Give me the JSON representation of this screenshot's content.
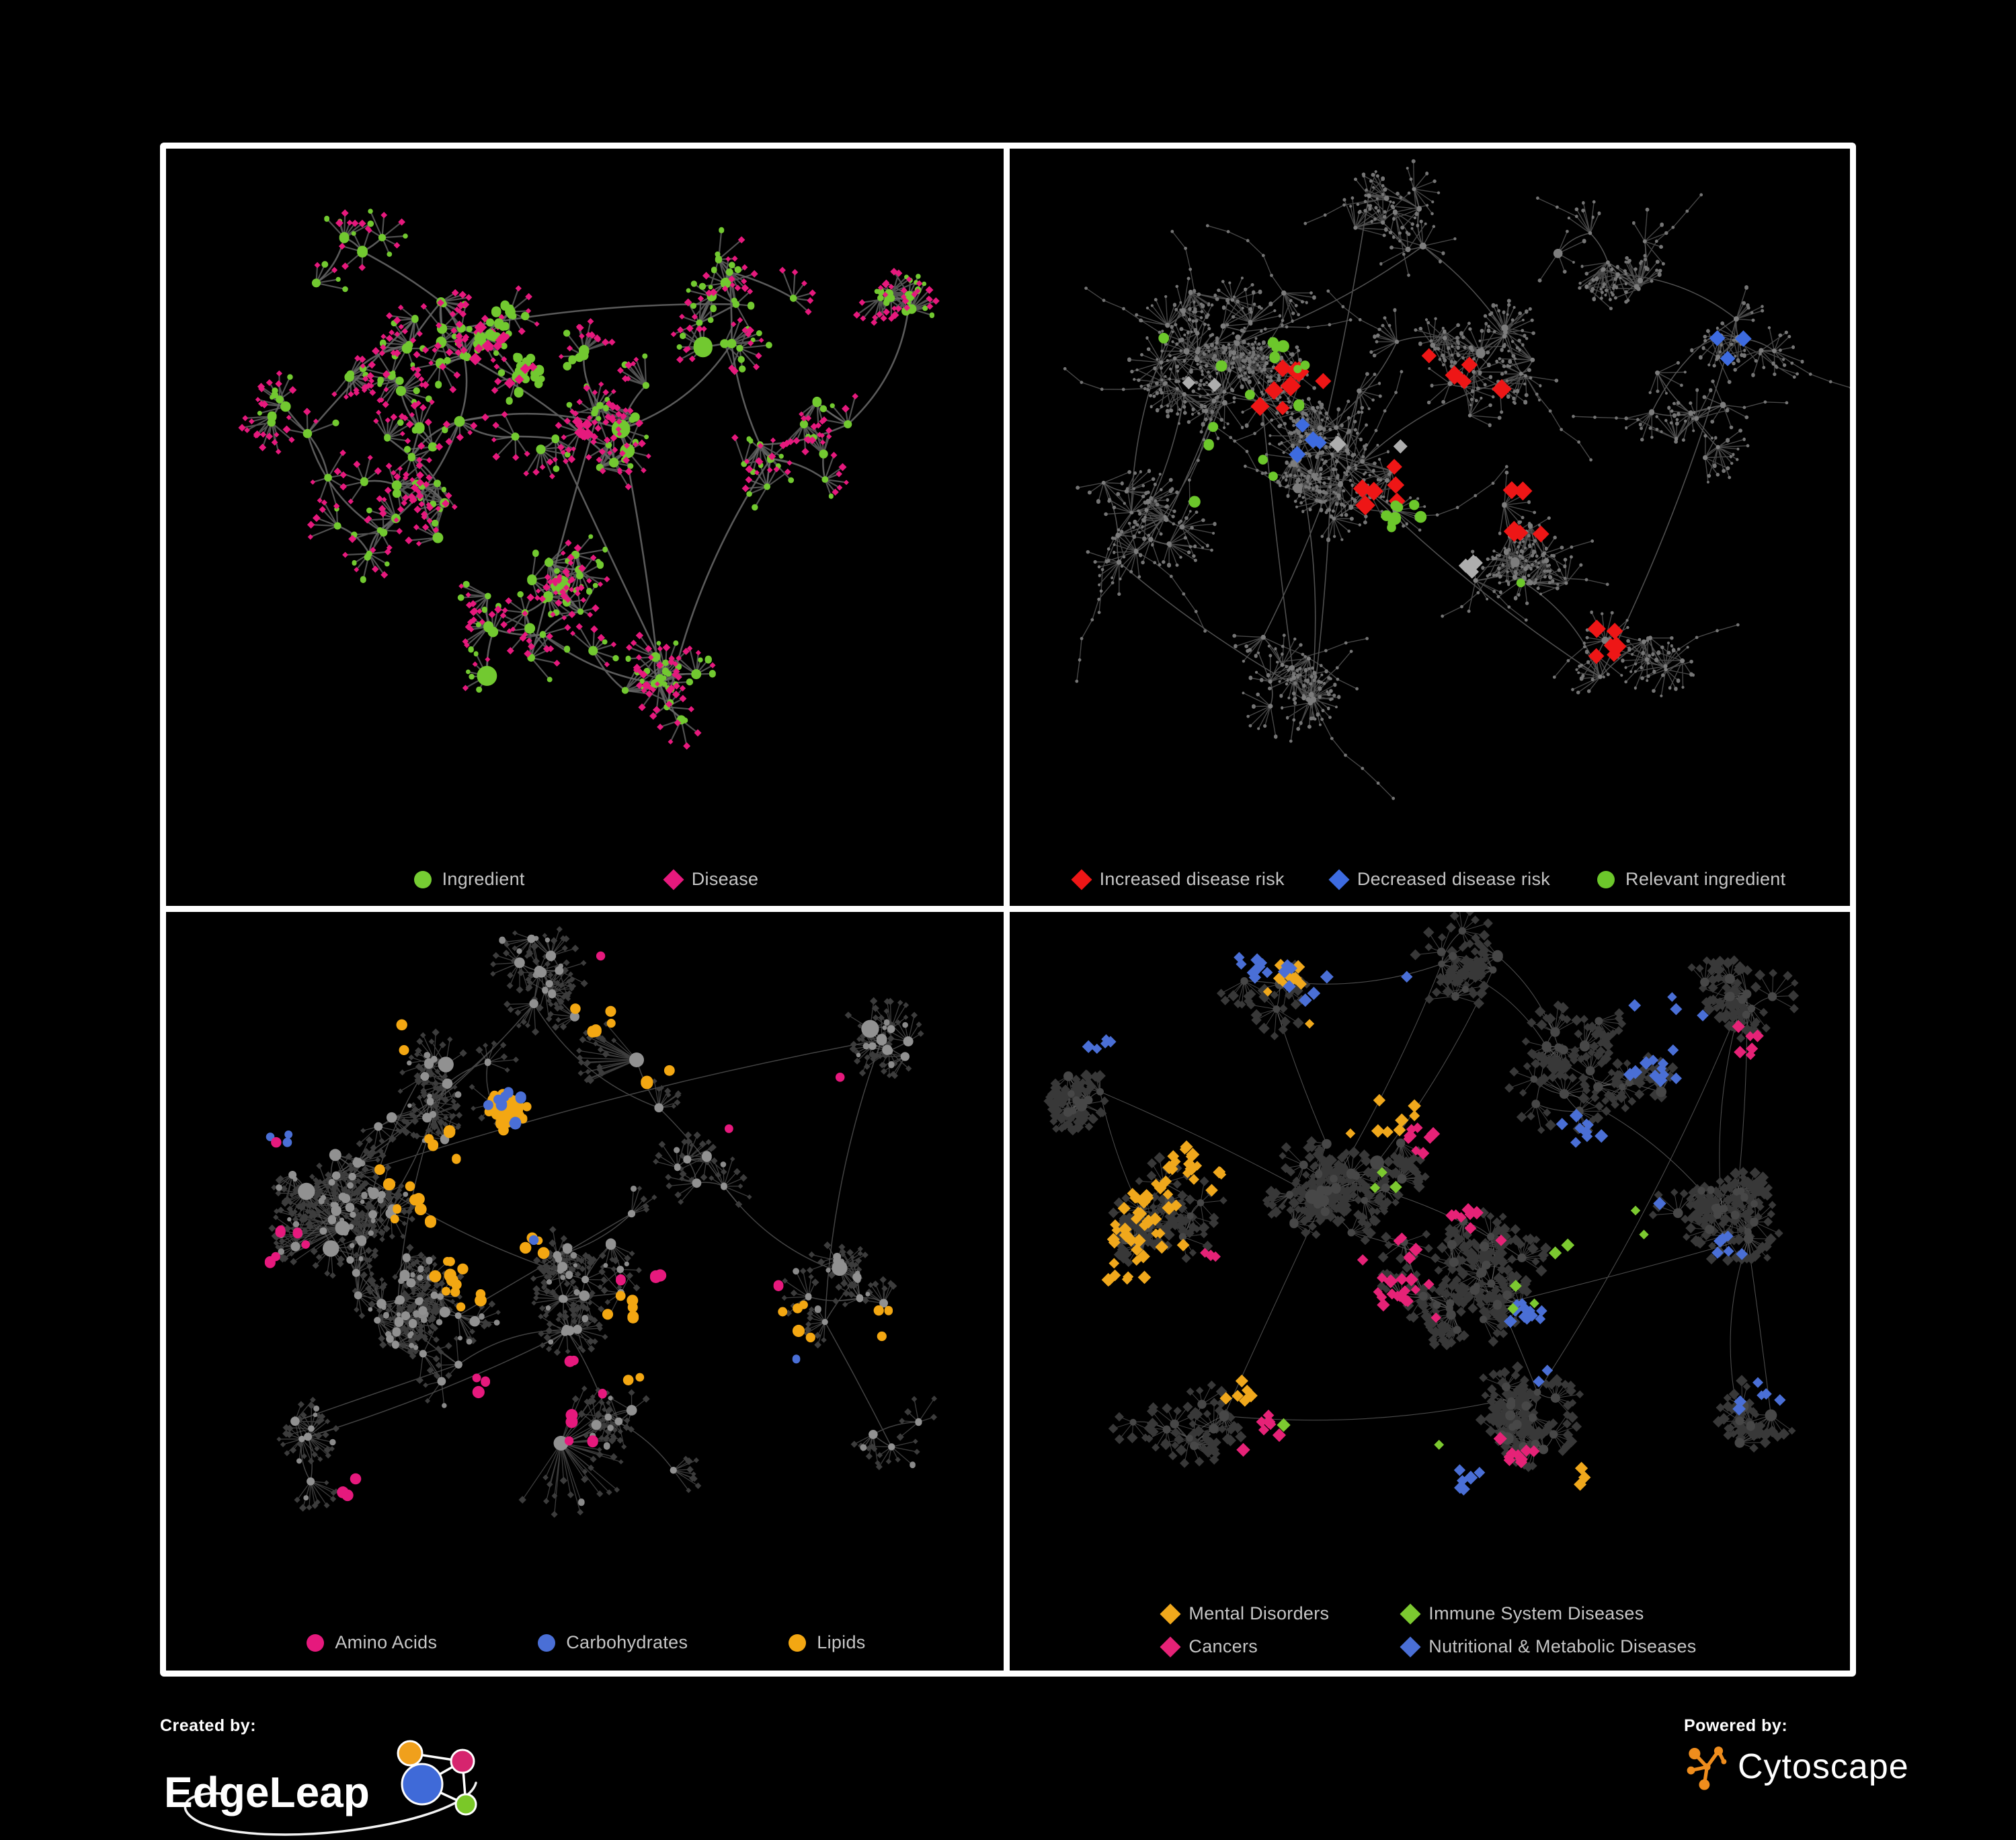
{
  "page": {
    "background": "#000000",
    "panel_border": "#ffffff",
    "legend_text_color": "#c6c6c6"
  },
  "panels": [
    {
      "name": "ingredient-disease-network",
      "legend": {
        "items": [
          {
            "label": "Ingredient",
            "shape": "circle",
            "color": "#76cc33"
          },
          {
            "label": "Disease",
            "shape": "diamond",
            "color": "#e6197d"
          }
        ]
      },
      "network": {
        "seed": 11,
        "stars": 118,
        "leaves": [
          4,
          9
        ],
        "leaf_dist": 31,
        "edge": {
          "color": "#6a6a6a",
          "width": 2.6,
          "opacity": 0.85
        },
        "leaf_edge_width": 2.2,
        "hub": {
          "shape": "circle",
          "color": "#72c930",
          "rmin": 4.5,
          "rmax": 8,
          "bigp": 0.07,
          "rbig": 13
        },
        "leaf_variants": [
          {
            "shape": "diamond",
            "color": "#e6197d",
            "size": 4.8,
            "p": 0.76
          },
          {
            "shape": "circle",
            "color": "#72c930",
            "size": 4.2,
            "p": 0.24
          }
        ],
        "blobs": [
          [
            0.34,
            0.3,
            0.15,
            3
          ],
          [
            0.3,
            0.52,
            0.12,
            3
          ],
          [
            0.52,
            0.42,
            0.14,
            2
          ],
          [
            0.67,
            0.25,
            0.12,
            1.5
          ],
          [
            0.76,
            0.45,
            0.09,
            1
          ],
          [
            0.45,
            0.7,
            0.12,
            1.5
          ],
          [
            0.25,
            0.15,
            0.09,
            1
          ],
          [
            0.6,
            0.8,
            0.07,
            1
          ],
          [
            0.15,
            0.4,
            0.07,
            0.8
          ],
          [
            0.88,
            0.22,
            0.05,
            0.5
          ]
        ],
        "highlights": [
          {
            "shape": "circle",
            "color": "#72c930",
            "size": 6,
            "count": 42,
            "blobs": [
              [
                0.4,
                0.28,
                0.045,
                2
              ],
              [
                0.445,
                0.33,
                0.035,
                1
              ]
            ]
          },
          {
            "shape": "diamond",
            "color": "#e6197d",
            "size": 8,
            "count": 18,
            "blobs": [
              [
                0.4,
                0.31,
                0.05,
                1
              ],
              [
                0.49,
                0.42,
                0.02,
                0.6
              ]
            ]
          }
        ]
      }
    },
    {
      "name": "disease-risk-network",
      "legend": {
        "items": [
          {
            "label": "Increased disease risk",
            "shape": "diamond",
            "color": "#ee1616"
          },
          {
            "label": "Decreased disease risk",
            "shape": "diamond",
            "color": "#3d6be0"
          },
          {
            "label": "Relevant ingredient",
            "shape": "circle",
            "color": "#6cc72b"
          }
        ]
      },
      "network": {
        "seed": 7,
        "stars": 165,
        "leaves": [
          5,
          11
        ],
        "leaf_dist": 34,
        "chainp": 0.35,
        "edge": {
          "color": "#585858",
          "width": 1.6,
          "opacity": 0.9
        },
        "leaf_edge_width": 1.4,
        "hub": {
          "shape": "circle",
          "color": "#7d7d7d",
          "rmin": 2.6,
          "rmax": 4.2,
          "bigp": 0.06,
          "rbig": 6
        },
        "leaf_variants": [
          {
            "shape": "circle",
            "color": "#757575",
            "size": 2.4,
            "p": 1
          }
        ],
        "blobs": [
          [
            0.25,
            0.3,
            0.13,
            3
          ],
          [
            0.38,
            0.46,
            0.12,
            2.5
          ],
          [
            0.15,
            0.55,
            0.09,
            1
          ],
          [
            0.55,
            0.3,
            0.12,
            1.5
          ],
          [
            0.7,
            0.18,
            0.09,
            1
          ],
          [
            0.8,
            0.4,
            0.08,
            1
          ],
          [
            0.6,
            0.6,
            0.09,
            1.2
          ],
          [
            0.35,
            0.78,
            0.09,
            1
          ],
          [
            0.75,
            0.78,
            0.07,
            0.8
          ],
          [
            0.88,
            0.28,
            0.05,
            0.6
          ],
          [
            0.45,
            0.1,
            0.07,
            0.8
          ]
        ],
        "highlights": [
          {
            "shape": "diamond",
            "color": "#ee1616",
            "size": 13,
            "count": 30,
            "blobs": [
              [
                0.33,
                0.35,
                0.1,
                3
              ],
              [
                0.45,
                0.5,
                0.08,
                2
              ],
              [
                0.55,
                0.33,
                0.06,
                1
              ],
              [
                0.71,
                0.74,
                0.04,
                1
              ],
              [
                0.62,
                0.52,
                0.05,
                1
              ]
            ]
          },
          {
            "shape": "diamond",
            "color": "#3d6be0",
            "size": 11,
            "count": 7,
            "blobs": [
              [
                0.86,
                0.29,
                0.025,
                1
              ],
              [
                0.35,
                0.44,
                0.04,
                1.5
              ],
              [
                0.2,
                0.42,
                0.02,
                0.5
              ]
            ]
          },
          {
            "shape": "diamond",
            "color": "#adadad",
            "size": 11,
            "count": 8,
            "blobs": [
              [
                0.42,
                0.43,
                0.09,
                1
              ],
              [
                0.53,
                0.6,
                0.06,
                0.8
              ],
              [
                0.23,
                0.36,
                0.03,
                0.5
              ]
            ]
          },
          {
            "shape": "circle",
            "color": "#6cc72b",
            "size": 7.5,
            "count": 24,
            "blobs": [
              [
                0.33,
                0.33,
                0.09,
                2
              ],
              [
                0.47,
                0.56,
                0.05,
                1
              ],
              [
                0.25,
                0.47,
                0.05,
                0.8
              ],
              [
                0.61,
                0.63,
                0.025,
                0.6
              ],
              [
                0.18,
                0.28,
                0.03,
                0.5
              ]
            ]
          }
        ]
      }
    },
    {
      "name": "nutrient-class-network",
      "legend": {
        "items": [
          {
            "label": "Amino Acids",
            "shape": "circle",
            "color": "#e6197d"
          },
          {
            "label": "Carbohydrates",
            "shape": "circle",
            "color": "#4a6fd6"
          },
          {
            "label": "Lipids",
            "shape": "circle",
            "color": "#f3a712"
          }
        ]
      },
      "network": {
        "seed": 23,
        "stars": 130,
        "leaves": [
          4,
          11
        ],
        "leaf_dist": 30,
        "edge": {
          "color": "#5a5a5a",
          "width": 1.5,
          "opacity": 0.75
        },
        "leaf_edge_width": 1.3,
        "hub": {
          "shape": "circle",
          "color": "#919191",
          "rmin": 4.5,
          "rmax": 8,
          "bigp": 0.06,
          "rbig": 11
        },
        "leaf_variants": [
          {
            "shape": "diamond",
            "color": "#3c3c3c",
            "size": 4.6,
            "p": 0.9
          },
          {
            "shape": "circle",
            "color": "#8a8a8a",
            "size": 4,
            "p": 0.1
          }
        ],
        "blobs": [
          [
            0.2,
            0.45,
            0.1,
            3
          ],
          [
            0.33,
            0.27,
            0.1,
            2.5
          ],
          [
            0.3,
            0.6,
            0.1,
            2
          ],
          [
            0.5,
            0.55,
            0.12,
            1.5
          ],
          [
            0.55,
            0.76,
            0.09,
            1.5
          ],
          [
            0.65,
            0.35,
            0.12,
            1
          ],
          [
            0.8,
            0.55,
            0.09,
            0.8
          ],
          [
            0.45,
            0.1,
            0.08,
            0.8
          ],
          [
            0.15,
            0.78,
            0.07,
            0.8
          ],
          [
            0.85,
            0.2,
            0.06,
            0.6
          ],
          [
            0.88,
            0.78,
            0.05,
            0.5
          ]
        ],
        "superstars": [
          [
            0.47,
            0.79,
            34,
            75
          ],
          [
            0.21,
            0.47,
            30,
            70
          ],
          [
            0.56,
            0.22,
            24,
            60
          ]
        ],
        "highlights": [
          {
            "shape": "circle",
            "color": "#f3a712",
            "size": 7.5,
            "count": 88,
            "blobs": [
              [
                0.42,
                0.3,
                0.055,
                3
              ],
              [
                0.37,
                0.52,
                0.05,
                1.5
              ],
              [
                0.55,
                0.63,
                0.035,
                0.7
              ],
              [
                0.3,
                0.41,
                0.09,
                1
              ],
              [
                0.74,
                0.62,
                0.05,
                0.6
              ],
              [
                0.57,
                0.2,
                0.1,
                0.5
              ],
              [
                0.23,
                0.12,
                0.05,
                0.4
              ],
              [
                0.86,
                0.66,
                0.03,
                0.4
              ]
            ]
          },
          {
            "shape": "circle",
            "color": "#4a6fd6",
            "size": 7,
            "count": 15,
            "blobs": [
              [
                0.43,
                0.28,
                0.05,
                2
              ],
              [
                0.39,
                0.55,
                0.07,
                1
              ],
              [
                0.73,
                0.73,
                0.02,
                0.5
              ],
              [
                0.12,
                0.27,
                0.02,
                0.4
              ]
            ]
          },
          {
            "shape": "circle",
            "color": "#e6197d",
            "size": 7.5,
            "count": 27,
            "blobs": [
              [
                0.14,
                0.48,
                0.1,
                1
              ],
              [
                0.44,
                0.73,
                0.1,
                1
              ],
              [
                0.63,
                0.55,
                0.09,
                0.8
              ],
              [
                0.55,
                0.03,
                0.012,
                0.4
              ],
              [
                0.27,
                0.86,
                0.05,
                0.5
              ],
              [
                0.1,
                0.3,
                0.04,
                0.4
              ],
              [
                0.74,
                0.28,
                0.05,
                0.5
              ]
            ]
          }
        ]
      }
    },
    {
      "name": "disease-class-network",
      "legend": {
        "items": [
          {
            "label": "Mental Disorders",
            "shape": "diamond",
            "color": "#f0a81c"
          },
          {
            "label": "Immune System Diseases",
            "shape": "diamond",
            "color": "#7cc930"
          },
          {
            "label": "Cancers",
            "shape": "diamond",
            "color": "#e62277"
          },
          {
            "label": "Nutritional & Metabolic Diseases",
            "shape": "diamond",
            "color": "#4a6fd6"
          }
        ]
      },
      "network": {
        "seed": 31,
        "stars": 150,
        "leaves": [
          5,
          12
        ],
        "leaf_dist": 28,
        "edge": {
          "color": "#969696",
          "width": 1.1,
          "opacity": 0.5
        },
        "leaf_edge_width": 1.0,
        "hub": {
          "shape": "circle",
          "color": "#474747",
          "rmin": 5,
          "rmax": 7.5,
          "bigp": 0.06,
          "rbig": 9
        },
        "leaf_variants": [
          {
            "shape": "diamond",
            "color": "#383838",
            "size": 7,
            "p": 1
          }
        ],
        "blobs": [
          [
            0.17,
            0.45,
            0.09,
            2.5
          ],
          [
            0.4,
            0.42,
            0.12,
            3
          ],
          [
            0.55,
            0.55,
            0.1,
            2
          ],
          [
            0.7,
            0.25,
            0.12,
            1.5
          ],
          [
            0.3,
            0.12,
            0.08,
            1
          ],
          [
            0.62,
            0.76,
            0.09,
            1.2
          ],
          [
            0.85,
            0.45,
            0.08,
            1
          ],
          [
            0.2,
            0.76,
            0.08,
            0.8
          ],
          [
            0.88,
            0.76,
            0.06,
            0.6
          ],
          [
            0.55,
            0.08,
            0.07,
            0.7
          ],
          [
            0.86,
            0.12,
            0.06,
            0.8
          ],
          [
            0.08,
            0.28,
            0.04,
            0.5
          ]
        ],
        "highlights": [
          {
            "shape": "diamond",
            "color": "#f0a81c",
            "size": 8.5,
            "count": 88,
            "blobs": [
              [
                0.16,
                0.46,
                0.065,
                3
              ],
              [
                0.24,
                0.34,
                0.05,
                1
              ],
              [
                0.33,
                0.1,
                0.05,
                0.6
              ],
              [
                0.44,
                0.26,
                0.09,
                0.5
              ],
              [
                0.3,
                0.68,
                0.03,
                0.4
              ],
              [
                0.72,
                0.88,
                0.018,
                0.3
              ],
              [
                0.12,
                0.6,
                0.04,
                0.5
              ]
            ]
          },
          {
            "shape": "diamond",
            "color": "#e62277",
            "size": 8.5,
            "count": 64,
            "blobs": [
              [
                0.46,
                0.55,
                0.065,
                2.5
              ],
              [
                0.55,
                0.46,
                0.05,
                1
              ],
              [
                0.88,
                0.24,
                0.03,
                0.8
              ],
              [
                0.36,
                0.8,
                0.05,
                0.5
              ],
              [
                0.6,
                0.82,
                0.04,
                0.4
              ],
              [
                0.26,
                0.55,
                0.03,
                0.4
              ],
              [
                0.5,
                0.34,
                0.04,
                0.6
              ]
            ]
          },
          {
            "shape": "diamond",
            "color": "#4a6fd6",
            "size": 8.5,
            "count": 80,
            "blobs": [
              [
                0.63,
                0.62,
                0.05,
                1.5
              ],
              [
                0.78,
                0.2,
                0.08,
                1.5
              ],
              [
                0.68,
                0.36,
                0.06,
                1
              ],
              [
                0.3,
                0.06,
                0.05,
                0.7
              ],
              [
                0.14,
                0.12,
                0.035,
                0.5
              ],
              [
                0.86,
                0.5,
                0.04,
                0.6
              ],
              [
                0.5,
                0.92,
                0.04,
                0.4
              ],
              [
                0.9,
                0.7,
                0.03,
                0.4
              ],
              [
                0.42,
                0.14,
                0.04,
                0.5
              ]
            ]
          },
          {
            "shape": "diamond",
            "color": "#7cc930",
            "size": 8.5,
            "count": 12,
            "blobs": [
              [
                0.45,
                0.4,
                0.08,
                1
              ],
              [
                0.6,
                0.55,
                0.05,
                0.5
              ],
              [
                0.4,
                0.82,
                0.05,
                0.4
              ],
              [
                0.7,
                0.5,
                0.04,
                0.4
              ]
            ]
          }
        ]
      }
    }
  ],
  "footer": {
    "created_by_label": "Created by:",
    "edgeleap_name": "EdgeLeap",
    "powered_by_label": "Powered by:",
    "cytoscape_name": "Cytoscape",
    "cytoscape_color": "#ef8d1d",
    "edgeleap_colors": {
      "blue": "#3f6ad8",
      "orange": "#f0a01c",
      "pink": "#d6246e",
      "green": "#7ac828"
    }
  }
}
